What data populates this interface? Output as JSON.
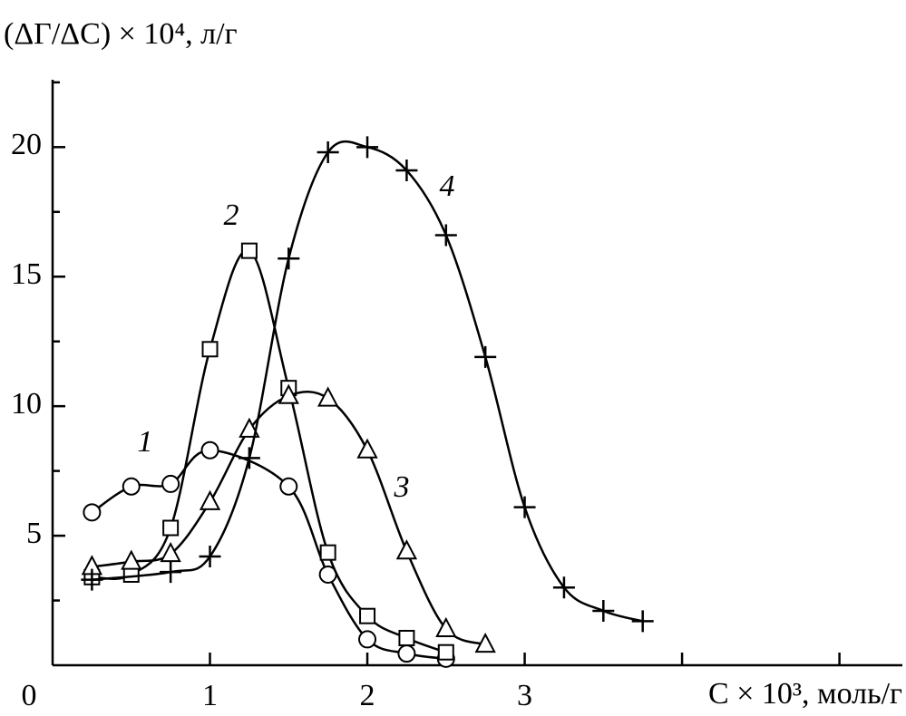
{
  "chart_data": {
    "type": "scatter",
    "y_label": "(ΔΓ/ΔC) × 10⁴, л/г",
    "x_label": "C × 10³, моль/г",
    "xlim": [
      0,
      5.4
    ],
    "ylim": [
      0,
      22.6
    ],
    "xticks": [
      0,
      1,
      2,
      3
    ],
    "x_minor_ticks": [
      4,
      5
    ],
    "yticks": [
      5,
      10,
      15,
      20
    ],
    "y_minor_ticks": [
      2.5,
      7.5,
      12.5,
      17.5,
      22.5
    ],
    "series": [
      {
        "name": "1",
        "marker": "circle",
        "color": "#000000",
        "x": [
          0.25,
          0.5,
          0.75,
          1.0,
          1.5,
          1.75,
          2.0,
          2.25,
          2.5
        ],
        "values": [
          5.9,
          6.9,
          7.0,
          8.3,
          6.9,
          3.5,
          1.0,
          0.45,
          0.25
        ]
      },
      {
        "name": "2",
        "marker": "square",
        "color": "#000000",
        "x": [
          0.25,
          0.5,
          0.75,
          1.0,
          1.25,
          1.5,
          1.75,
          2.0,
          2.25,
          2.5
        ],
        "values": [
          3.4,
          3.5,
          5.3,
          12.2,
          16.0,
          10.7,
          4.35,
          1.9,
          1.05,
          0.5
        ]
      },
      {
        "name": "3",
        "marker": "triangle",
        "color": "#000000",
        "x": [
          0.25,
          0.5,
          0.75,
          1.0,
          1.25,
          1.5,
          1.75,
          2.0,
          2.25,
          2.5,
          2.75
        ],
        "values": [
          3.8,
          4.0,
          4.3,
          6.3,
          9.1,
          10.4,
          10.3,
          8.3,
          4.4,
          1.4,
          0.8
        ]
      },
      {
        "name": "4",
        "marker": "plus",
        "color": "#000000",
        "x": [
          0.25,
          0.75,
          1.0,
          1.25,
          1.5,
          1.75,
          2.0,
          2.25,
          2.5,
          2.75,
          3.0,
          3.25,
          3.5,
          3.75
        ],
        "values": [
          3.3,
          3.6,
          4.2,
          8.0,
          15.7,
          19.8,
          20.0,
          19.1,
          16.6,
          11.9,
          6.1,
          3.0,
          2.1,
          1.7
        ]
      }
    ]
  }
}
